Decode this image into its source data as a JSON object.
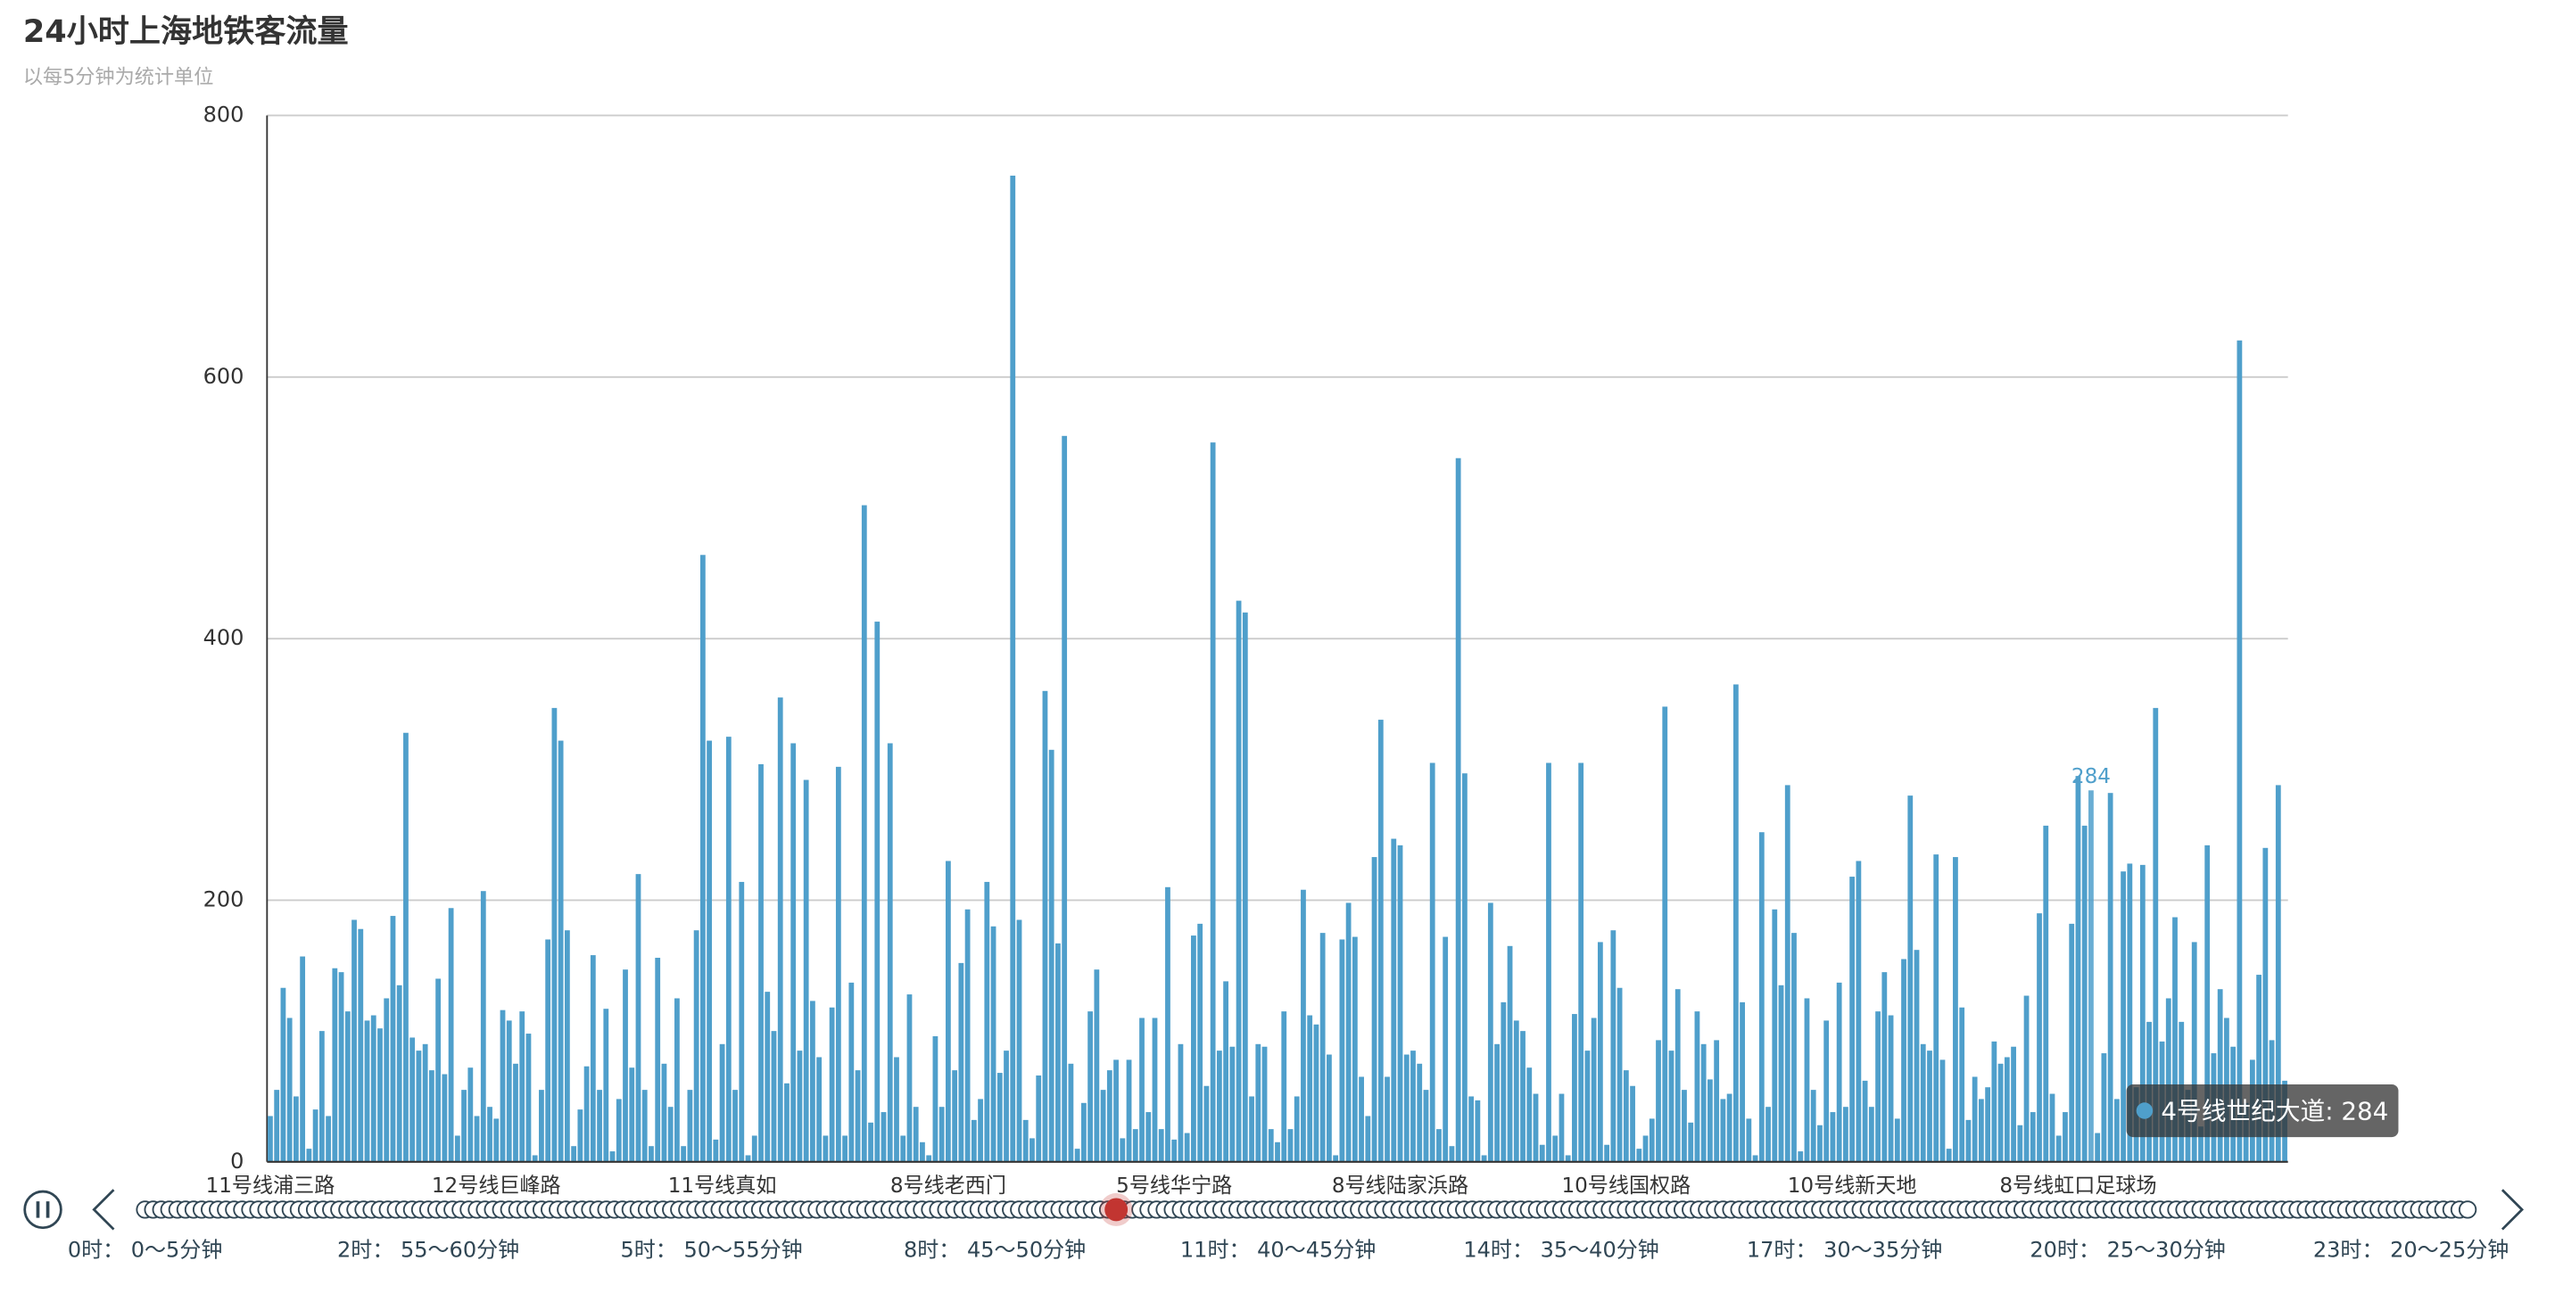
{
  "chart_data": {
    "type": "bar",
    "title": "24小时上海地铁客流量",
    "subtitle": "以每5分钟为统计单位",
    "color": "#4f9fcb",
    "grid": true,
    "ylim": [
      0,
      800
    ],
    "yticks": [
      0,
      200,
      400,
      600,
      800
    ],
    "categories": [
      "11号线浦三路",
      null,
      null,
      null,
      null,
      null,
      null,
      null,
      null,
      null,
      null,
      null,
      null,
      null,
      null,
      null,
      null,
      null,
      null,
      null,
      null,
      null,
      null,
      null,
      null,
      null,
      null,
      null,
      null,
      null,
      null,
      null,
      null,
      null,
      null,
      "12号线巨峰路",
      null,
      null,
      null,
      null,
      null,
      null,
      null,
      null,
      null,
      null,
      null,
      null,
      null,
      null,
      null,
      null,
      null,
      null,
      null,
      null,
      null,
      null,
      null,
      null,
      null,
      null,
      null,
      null,
      null,
      null,
      null,
      null,
      null,
      null,
      "11号线真如",
      null,
      null,
      null,
      null,
      null,
      null,
      null,
      null,
      null,
      null,
      null,
      null,
      null,
      null,
      null,
      null,
      null,
      null,
      null,
      null,
      null,
      null,
      null,
      null,
      null,
      null,
      null,
      null,
      null,
      null,
      null,
      null,
      null,
      null,
      "8号线老西门",
      null,
      null,
      null,
      null,
      null,
      null,
      null,
      null,
      null,
      null,
      null,
      null,
      null,
      null,
      null,
      null,
      null,
      null,
      null,
      null,
      null,
      null,
      null,
      null,
      null,
      null,
      null,
      null,
      null,
      null,
      null,
      null,
      null,
      null,
      "5号线华宁路",
      null,
      null,
      null,
      null,
      null,
      null,
      null,
      null,
      null,
      null,
      null,
      null,
      null,
      null,
      null,
      null,
      null,
      null,
      null,
      null,
      null,
      null,
      null,
      null,
      null,
      null,
      null,
      null,
      null,
      null,
      null,
      null,
      null,
      null,
      "8号线陆家浜路",
      null,
      null,
      null,
      null,
      null,
      null,
      null,
      null,
      null,
      null,
      null,
      null,
      null,
      null,
      null,
      null,
      null,
      null,
      null,
      null,
      null,
      null,
      null,
      null,
      null,
      null,
      null,
      null,
      null,
      null,
      null,
      null,
      null,
      null,
      "10号线国权路",
      null,
      null,
      null,
      null,
      null,
      null,
      null,
      null,
      null,
      null,
      null,
      null,
      null,
      null,
      null,
      null,
      null,
      null,
      null,
      null,
      null,
      null,
      null,
      null,
      null,
      null,
      null,
      null,
      null,
      null,
      null,
      null,
      null,
      null,
      "10号线新天地",
      null,
      null,
      null,
      null,
      null,
      null,
      null,
      null,
      null,
      null,
      null,
      null,
      null,
      null,
      null,
      null,
      null,
      null,
      null,
      null,
      null,
      null,
      null,
      null,
      null,
      null,
      null,
      null,
      null,
      null,
      null,
      null,
      null,
      null,
      "8号线虹口足球场",
      null,
      null,
      null,
      null,
      null,
      null,
      null,
      null,
      null,
      null,
      null,
      null,
      null,
      null,
      null,
      null,
      null,
      null,
      null,
      null,
      null,
      null,
      null,
      null,
      null,
      null,
      null,
      null,
      null,
      null,
      null,
      null
    ],
    "values": [
      35,
      55,
      133,
      110,
      50,
      157,
      10,
      40,
      100,
      35,
      148,
      145,
      115,
      185,
      178,
      108,
      112,
      102,
      125,
      188,
      135,
      328,
      95,
      85,
      90,
      70,
      140,
      67,
      194,
      20,
      55,
      72,
      35,
      207,
      42,
      33,
      116,
      108,
      75,
      115,
      98,
      5,
      55,
      170,
      347,
      322,
      177,
      12,
      40,
      73,
      158,
      55,
      117,
      8,
      48,
      147,
      72,
      220,
      55,
      12,
      156,
      75,
      42,
      125,
      12,
      55,
      177,
      464,
      322,
      17,
      90,
      325,
      55,
      214,
      5,
      20,
      304,
      130,
      100,
      355,
      60,
      320,
      85,
      292,
      123,
      80,
      20,
      118,
      302,
      20,
      137,
      70,
      502,
      30,
      413,
      38,
      320,
      80,
      20,
      128,
      42,
      15,
      5,
      96,
      42,
      230,
      70,
      152,
      193,
      32,
      48,
      214,
      180,
      68,
      85,
      754,
      185,
      32,
      18,
      66,
      360,
      315,
      167,
      555,
      75,
      10,
      45,
      115,
      147,
      55,
      70,
      78,
      18,
      78,
      25,
      110,
      38,
      110,
      25,
      210,
      17,
      90,
      22,
      173,
      182,
      58,
      550,
      85,
      138,
      88,
      429,
      420,
      50,
      90,
      88,
      25,
      15,
      115,
      25,
      50,
      208,
      112,
      105,
      175,
      82,
      5,
      170,
      198,
      172,
      65,
      35,
      233,
      338,
      65,
      247,
      242,
      82,
      85,
      75,
      55,
      305,
      25,
      172,
      12,
      538,
      297,
      50,
      47,
      5,
      198,
      90,
      122,
      165,
      108,
      100,
      72,
      52,
      13,
      305,
      20,
      52,
      5,
      113,
      305,
      85,
      110,
      168,
      13,
      177,
      133,
      70,
      58,
      10,
      20,
      33,
      93,
      348,
      85,
      132,
      55,
      30,
      115,
      90,
      63,
      93,
      48,
      52,
      365,
      122,
      33,
      5,
      252,
      42,
      193,
      135,
      288,
      175,
      8,
      125,
      55,
      28,
      108,
      38,
      137,
      42,
      218,
      230,
      62,
      42,
      115,
      145,
      112,
      33,
      155,
      280,
      162,
      90,
      85,
      235,
      78,
      10,
      233,
      118,
      32,
      65,
      48,
      57,
      92,
      75,
      80,
      88,
      28,
      127,
      38,
      190,
      257,
      52,
      20,
      38,
      182,
      295,
      257,
      284,
      22,
      83,
      282,
      48,
      222,
      228,
      57,
      227,
      107,
      347,
      92,
      125,
      187,
      107,
      55,
      168,
      27,
      242,
      83,
      132,
      110,
      88,
      628,
      45,
      78,
      143,
      240,
      93,
      288,
      62
    ],
    "tooltip": {
      "name": "4号线世纪大道",
      "separator": ": ",
      "value": 284
    },
    "timeline": {
      "labels": [
        "0时： 0～5分钟",
        "2时： 55～60分钟",
        "5时： 50～55分钟",
        "8时： 45～50分钟",
        "11时： 40～45分钟",
        "14时： 35～40分钟",
        "17时： 30～35分钟",
        "20时： 25～30分钟",
        "23时： 20～25分钟"
      ]
    }
  }
}
